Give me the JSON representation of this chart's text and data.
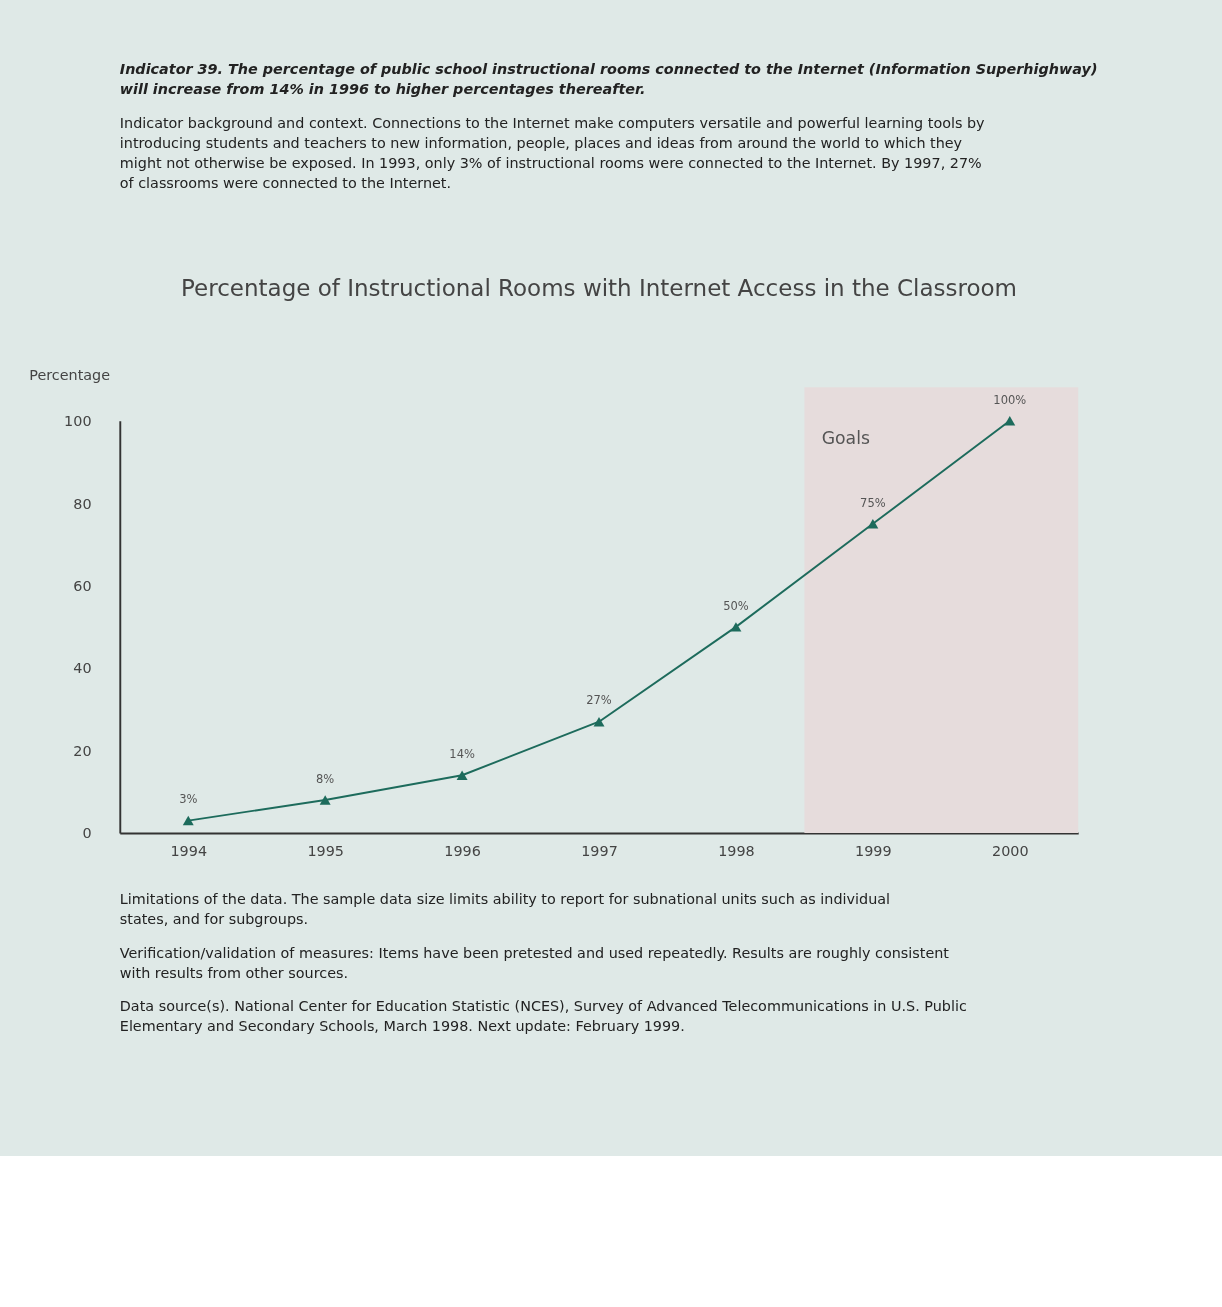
{
  "chart_data": {
    "type": "line",
    "title": "Percentage of Instructional Rooms with Internet Access in the Classroom",
    "ylabel": "Percentage",
    "x": [
      1994,
      1995,
      1996,
      1997,
      1998,
      1999,
      2000
    ],
    "series": [
      {
        "color": "#1d6b5c",
        "values": [
          3,
          8,
          14,
          27,
          50,
          75,
          100
        ],
        "value_labels": [
          "3%",
          "8%",
          "14%",
          "27%",
          "50%",
          "75%",
          "100%"
        ]
      }
    ],
    "xlim": [
      1993.5,
      2000.5
    ],
    "xticks": [
      1994,
      1995,
      1996,
      1997,
      1998,
      1999,
      2000
    ],
    "ylim": [
      0,
      100
    ],
    "yticks": [
      0,
      20,
      40,
      60,
      80,
      100
    ],
    "bands": [
      {
        "axis": "x",
        "from": 1998.5,
        "to": 2000.5,
        "label": "Goals",
        "color": "#e6dcdc"
      }
    ],
    "grid": false,
    "marker": "triangle",
    "line_style": "solid",
    "annotations": [
      "Indicator 39. The percentage of public school instructional rooms connected to the Internet (Information Superhighway) will increase from 14% in 1996 to higher percentages thereafter.",
      "Indicator background and context. Connections to the Internet make computers versatile and powerful learning tools by introducing students and teachers to new information, people, places and ideas from around the world to which they might not otherwise be exposed. In 1993, only 3% of instructional rooms were connected to the Internet. By 1997, 27% of classrooms were connected to the Internet.",
      "Limitations of the data. The sample data size limits ability to report for subnational units such as individual states, and for subgroups.",
      "Verification/validation of measures: Items have been pretested and used repeatedly. Results are roughly consistent with results from other sources.",
      "Data source(s). National Center for Education Statistic (NCES), Survey of Advanced Telecommunications in U.S. Public Elementary and Secondary Schools, March 1998. Next update: February 1999."
    ]
  }
}
